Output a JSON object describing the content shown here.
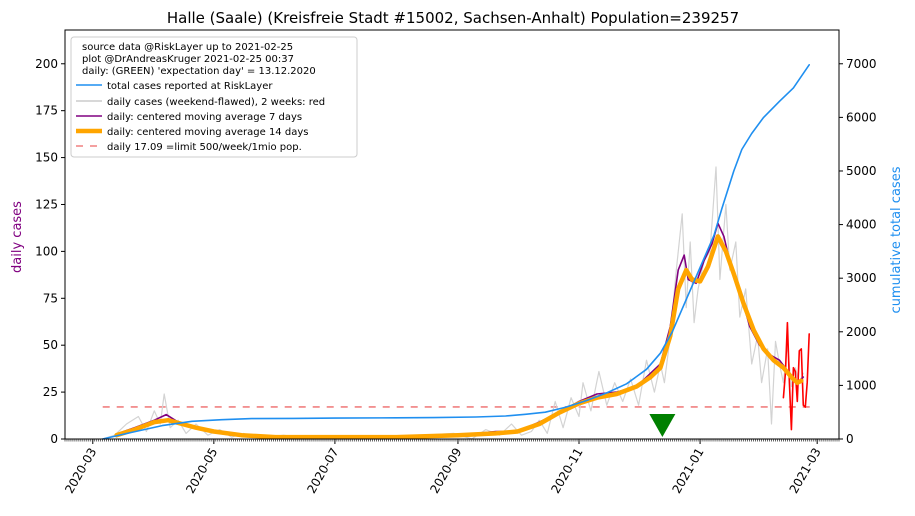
{
  "chart_data": {
    "type": "line",
    "title": "Halle (Saale) (Kreisfreie Stadt #15002, Sachsen-Anhalt) Population=239257",
    "ylabel_left": "daily cases",
    "ylabel_right": "cumulative total cases",
    "ylim_left": [
      0,
      218
    ],
    "ylim_right": [
      0,
      7630
    ],
    "xlim": [
      "2020-02-16",
      "2021-03-12"
    ],
    "grid": false,
    "legend_position": "top-left",
    "x_ticks": [
      "2020-03",
      "2020-05",
      "2020-07",
      "2020-09",
      "2020-11",
      "2021-01",
      "2021-03"
    ],
    "y_ticks_left": [
      0,
      25,
      50,
      75,
      100,
      125,
      150,
      175,
      200
    ],
    "y_ticks_right": [
      0,
      1000,
      2000,
      3000,
      4000,
      5000,
      6000,
      7000
    ],
    "legend_header": [
      "source data @RiskLayer up to 2021-02-25",
      "plot @DrAndreasKruger 2021-02-25 00:37",
      "daily: (GREEN) 'expectation day' = 13.12.2020"
    ],
    "legend_entries": [
      {
        "label": "total cases reported at RiskLayer",
        "color": "#1f8ff0",
        "style": "line"
      },
      {
        "label": "daily cases (weekend-flawed), 2 weeks: red",
        "color": "#cccccc",
        "style": "line"
      },
      {
        "label": "daily: centered moving average 7 days",
        "color": "#800080",
        "style": "line"
      },
      {
        "label": "daily: centered moving average 14 days",
        "color": "#ffa500",
        "style": "thick"
      },
      {
        "label": "daily 17.09 =limit 500/week/1mio pop.",
        "color": "#f08080",
        "style": "dash"
      }
    ],
    "limit_line": {
      "value": 17.09,
      "from": "2020-03-06",
      "to": "2021-02-26"
    },
    "expectation_day": "2020-12-13",
    "series": [
      {
        "name": "total cases reported at RiskLayer",
        "axis": "right",
        "color": "#1f8ff0",
        "points": [
          [
            "2020-03-06",
            0
          ],
          [
            "2020-03-20",
            120
          ],
          [
            "2020-04-05",
            250
          ],
          [
            "2020-04-20",
            330
          ],
          [
            "2020-05-05",
            360
          ],
          [
            "2020-05-20",
            380
          ],
          [
            "2020-06-10",
            385
          ],
          [
            "2020-07-01",
            390
          ],
          [
            "2020-08-01",
            395
          ],
          [
            "2020-08-20",
            400
          ],
          [
            "2020-09-10",
            410
          ],
          [
            "2020-09-25",
            430
          ],
          [
            "2020-10-05",
            460
          ],
          [
            "2020-10-15",
            500
          ],
          [
            "2020-10-25",
            590
          ],
          [
            "2020-11-05",
            720
          ],
          [
            "2020-11-15",
            860
          ],
          [
            "2020-11-25",
            1030
          ],
          [
            "2020-12-05",
            1300
          ],
          [
            "2020-12-12",
            1600
          ],
          [
            "2020-12-18",
            2000
          ],
          [
            "2020-12-25",
            2600
          ],
          [
            "2021-01-01",
            3200
          ],
          [
            "2021-01-08",
            3800
          ],
          [
            "2021-01-12",
            4300
          ],
          [
            "2021-01-18",
            5000
          ],
          [
            "2021-01-22",
            5400
          ],
          [
            "2021-01-27",
            5700
          ],
          [
            "2021-02-02",
            6000
          ],
          [
            "2021-02-10",
            6300
          ],
          [
            "2021-02-17",
            6550
          ],
          [
            "2021-02-25",
            6980
          ]
        ]
      },
      {
        "name": "daily cases (weekend-flawed), 2 weeks: red",
        "axis": "left",
        "color": "#d3d3d3",
        "points": [
          [
            "2020-03-06",
            0
          ],
          [
            "2020-03-12",
            2
          ],
          [
            "2020-03-18",
            8
          ],
          [
            "2020-03-24",
            12
          ],
          [
            "2020-03-28",
            4
          ],
          [
            "2020-04-01",
            15
          ],
          [
            "2020-04-04",
            8
          ],
          [
            "2020-04-06",
            24
          ],
          [
            "2020-04-09",
            6
          ],
          [
            "2020-04-13",
            10
          ],
          [
            "2020-04-17",
            3
          ],
          [
            "2020-04-22",
            8
          ],
          [
            "2020-04-28",
            2
          ],
          [
            "2020-05-04",
            5
          ],
          [
            "2020-05-10",
            1
          ],
          [
            "2020-05-16",
            3
          ],
          [
            "2020-05-24",
            0
          ],
          [
            "2020-06-05",
            2
          ],
          [
            "2020-06-20",
            0
          ],
          [
            "2020-07-05",
            1
          ],
          [
            "2020-07-25",
            0
          ],
          [
            "2020-08-15",
            2
          ],
          [
            "2020-08-30",
            3
          ],
          [
            "2020-09-08",
            0
          ],
          [
            "2020-09-15",
            5
          ],
          [
            "2020-09-22",
            2
          ],
          [
            "2020-09-28",
            8
          ],
          [
            "2020-10-03",
            2
          ],
          [
            "2020-10-08",
            4
          ],
          [
            "2020-10-12",
            10
          ],
          [
            "2020-10-16",
            3
          ],
          [
            "2020-10-20",
            20
          ],
          [
            "2020-10-24",
            6
          ],
          [
            "2020-10-28",
            22
          ],
          [
            "2020-11-01",
            12
          ],
          [
            "2020-11-03",
            30
          ],
          [
            "2020-11-07",
            15
          ],
          [
            "2020-11-11",
            36
          ],
          [
            "2020-11-15",
            18
          ],
          [
            "2020-11-19",
            30
          ],
          [
            "2020-11-23",
            20
          ],
          [
            "2020-11-27",
            32
          ],
          [
            "2020-12-01",
            18
          ],
          [
            "2020-12-05",
            42
          ],
          [
            "2020-12-09",
            25
          ],
          [
            "2020-12-12",
            40
          ],
          [
            "2020-12-14",
            30
          ],
          [
            "2020-12-17",
            55
          ],
          [
            "2020-12-20",
            90
          ],
          [
            "2020-12-23",
            120
          ],
          [
            "2020-12-25",
            70
          ],
          [
            "2020-12-27",
            105
          ],
          [
            "2020-12-29",
            62
          ],
          [
            "2020-12-31",
            80
          ],
          [
            "2021-01-03",
            95
          ],
          [
            "2021-01-06",
            100
          ],
          [
            "2021-01-09",
            145
          ],
          [
            "2021-01-11",
            85
          ],
          [
            "2021-01-14",
            125
          ],
          [
            "2021-01-16",
            90
          ],
          [
            "2021-01-19",
            105
          ],
          [
            "2021-01-21",
            65
          ],
          [
            "2021-01-24",
            80
          ],
          [
            "2021-01-27",
            40
          ],
          [
            "2021-01-30",
            55
          ],
          [
            "2021-02-01",
            30
          ],
          [
            "2021-02-04",
            48
          ],
          [
            "2021-02-06",
            8
          ],
          [
            "2021-02-08",
            52
          ],
          [
            "2021-02-10",
            40
          ],
          [
            "2021-02-12",
            30
          ],
          [
            "2021-02-14",
            50
          ],
          [
            "2021-02-16",
            28
          ],
          [
            "2021-02-18",
            38
          ],
          [
            "2021-02-20",
            30
          ],
          [
            "2021-02-22",
            35
          ]
        ]
      },
      {
        "name": "daily cases, last 2 weeks",
        "axis": "left",
        "color": "#ff0000",
        "points": [
          [
            "2021-02-12",
            22
          ],
          [
            "2021-02-13",
            35
          ],
          [
            "2021-02-14",
            62
          ],
          [
            "2021-02-15",
            30
          ],
          [
            "2021-02-16",
            5
          ],
          [
            "2021-02-17",
            38
          ],
          [
            "2021-02-18",
            36
          ],
          [
            "2021-02-19",
            20
          ],
          [
            "2021-02-20",
            47
          ],
          [
            "2021-02-21",
            48
          ],
          [
            "2021-02-22",
            18
          ],
          [
            "2021-02-23",
            17
          ],
          [
            "2021-02-24",
            30
          ],
          [
            "2021-02-25",
            56
          ]
        ]
      },
      {
        "name": "daily: centered moving average 7 days",
        "axis": "left",
        "color": "#800080",
        "points": [
          [
            "2020-03-14",
            3
          ],
          [
            "2020-03-22",
            6
          ],
          [
            "2020-04-01",
            10
          ],
          [
            "2020-04-07",
            13
          ],
          [
            "2020-04-13",
            9
          ],
          [
            "2020-04-20",
            6
          ],
          [
            "2020-04-28",
            4
          ],
          [
            "2020-05-10",
            2
          ],
          [
            "2020-06-01",
            1
          ],
          [
            "2020-07-01",
            1
          ],
          [
            "2020-08-01",
            1
          ],
          [
            "2020-09-01",
            2
          ],
          [
            "2020-09-20",
            4
          ],
          [
            "2020-10-01",
            4
          ],
          [
            "2020-10-12",
            9
          ],
          [
            "2020-10-22",
            14
          ],
          [
            "2020-11-01",
            20
          ],
          [
            "2020-11-10",
            24
          ],
          [
            "2020-11-20",
            25
          ],
          [
            "2020-11-30",
            28
          ],
          [
            "2020-12-07",
            35
          ],
          [
            "2020-12-12",
            40
          ],
          [
            "2020-12-17",
            60
          ],
          [
            "2020-12-21",
            90
          ],
          [
            "2020-12-24",
            98
          ],
          [
            "2020-12-26",
            85
          ],
          [
            "2020-12-30",
            83
          ],
          [
            "2021-01-03",
            95
          ],
          [
            "2021-01-07",
            104
          ],
          [
            "2021-01-10",
            115
          ],
          [
            "2021-01-13",
            108
          ],
          [
            "2021-01-17",
            90
          ],
          [
            "2021-01-22",
            75
          ],
          [
            "2021-01-26",
            60
          ],
          [
            "2021-01-31",
            50
          ],
          [
            "2021-02-05",
            45
          ],
          [
            "2021-02-10",
            42
          ],
          [
            "2021-02-15",
            35
          ],
          [
            "2021-02-19",
            30
          ],
          [
            "2021-02-22",
            33
          ]
        ]
      },
      {
        "name": "daily: centered moving average 14 days",
        "axis": "left",
        "color": "#ffa500",
        "points": [
          [
            "2020-03-13",
            2
          ],
          [
            "2020-03-22",
            5
          ],
          [
            "2020-04-01",
            9
          ],
          [
            "2020-04-08",
            10
          ],
          [
            "2020-04-15",
            8
          ],
          [
            "2020-04-22",
            6
          ],
          [
            "2020-05-01",
            4
          ],
          [
            "2020-05-15",
            2
          ],
          [
            "2020-06-01",
            1
          ],
          [
            "2020-07-01",
            1
          ],
          [
            "2020-08-01",
            1
          ],
          [
            "2020-09-01",
            2
          ],
          [
            "2020-09-20",
            3
          ],
          [
            "2020-10-01",
            4
          ],
          [
            "2020-10-12",
            8
          ],
          [
            "2020-10-22",
            14
          ],
          [
            "2020-11-01",
            19
          ],
          [
            "2020-11-10",
            22
          ],
          [
            "2020-11-20",
            24
          ],
          [
            "2020-11-30",
            28
          ],
          [
            "2020-12-07",
            33
          ],
          [
            "2020-12-12",
            38
          ],
          [
            "2020-12-17",
            55
          ],
          [
            "2020-12-21",
            80
          ],
          [
            "2020-12-25",
            90
          ],
          [
            "2020-12-28",
            85
          ],
          [
            "2021-01-01",
            84
          ],
          [
            "2021-01-05",
            92
          ],
          [
            "2021-01-10",
            108
          ],
          [
            "2021-01-14",
            100
          ],
          [
            "2021-01-18",
            88
          ],
          [
            "2021-01-23",
            72
          ],
          [
            "2021-01-28",
            58
          ],
          [
            "2021-02-02",
            48
          ],
          [
            "2021-02-07",
            42
          ],
          [
            "2021-02-12",
            38
          ],
          [
            "2021-02-16",
            33
          ],
          [
            "2021-02-19",
            30
          ],
          [
            "2021-02-21",
            31
          ]
        ]
      }
    ]
  }
}
